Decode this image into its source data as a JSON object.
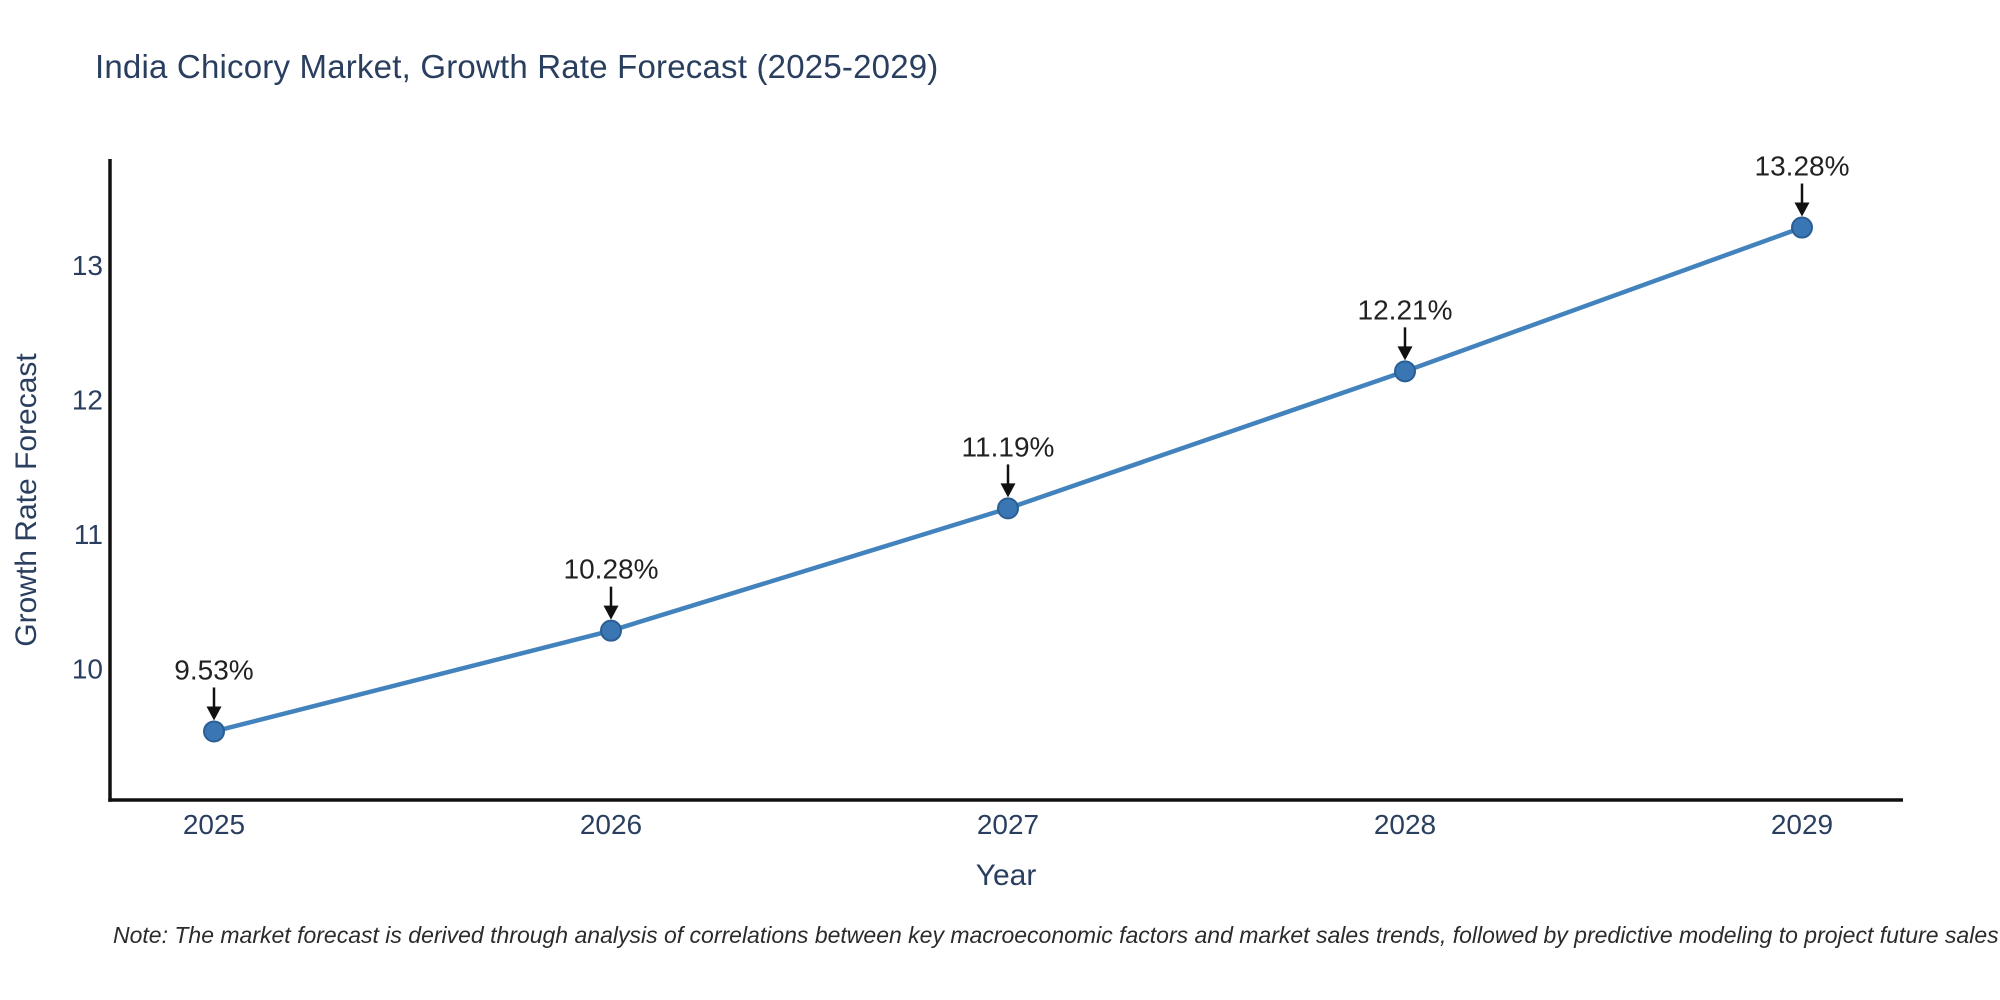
{
  "title": "India Chicory Market, Growth Rate Forecast (2025-2029)",
  "footnote": "Note: The market forecast is derived through analysis of correlations between key macroeconomic factors and market sales trends, followed by predictive modeling to project future sales",
  "chart_data": {
    "type": "line",
    "title": "India Chicory Market, Growth Rate Forecast (2025-2029)",
    "xlabel": "Year",
    "ylabel": "Growth Rate Forecast",
    "categories": [
      "2025",
      "2026",
      "2027",
      "2028",
      "2029"
    ],
    "values": [
      9.53,
      10.28,
      11.19,
      12.21,
      13.28
    ],
    "point_labels": [
      "9.53%",
      "10.28%",
      "11.19%",
      "12.21%",
      "13.28%"
    ],
    "yticks": [
      10,
      11,
      12,
      13
    ],
    "ylim": [
      9.02,
      13.79
    ],
    "grid": false,
    "legend": null,
    "annotation_style": "black down-arrow from label to marker"
  },
  "colors": {
    "title_text": "#2a3f5f",
    "axis_text": "#2a3f5f",
    "annotation_text": "#222222",
    "line": "#4383bd",
    "marker_fill": "#3a76b4",
    "marker_edge": "#2b5f93",
    "axis_line": "#111111",
    "arrow": "#111111",
    "background": "#ffffff"
  }
}
